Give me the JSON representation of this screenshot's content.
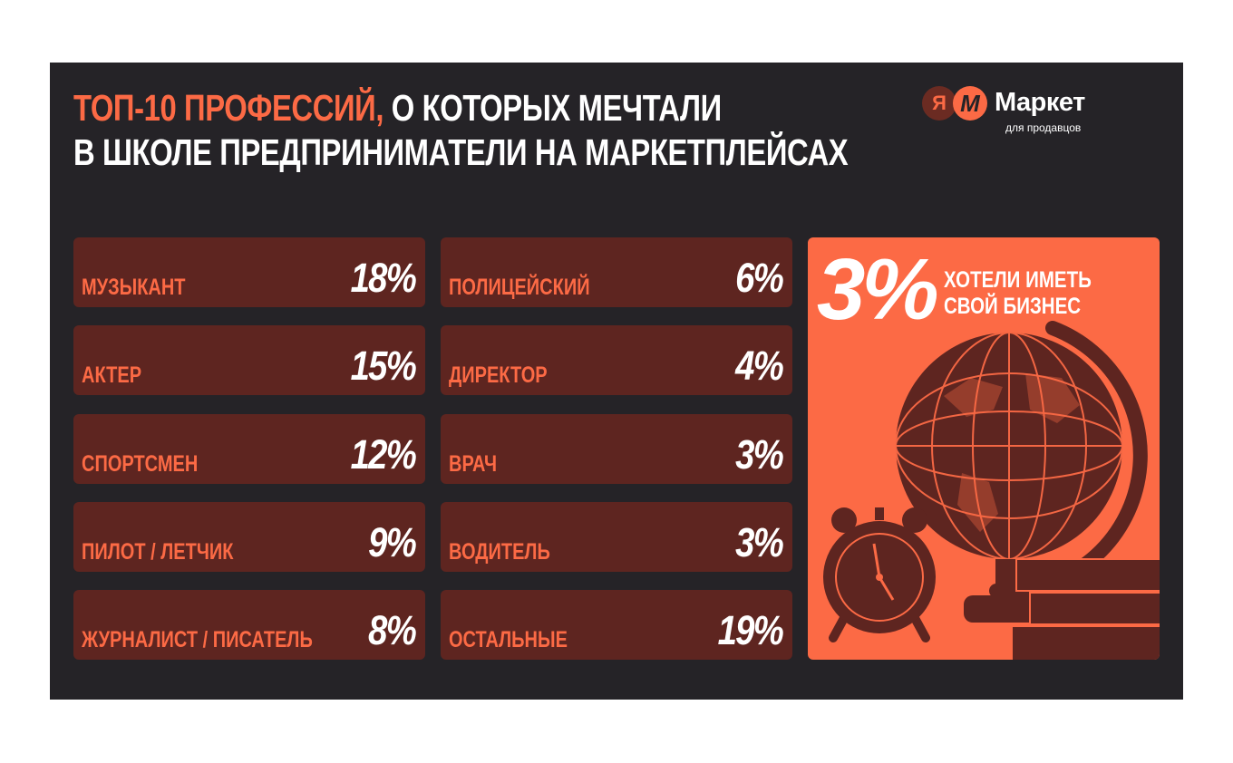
{
  "header": {
    "title_accent": "ТОП-10 ПРОФЕССИЙ,",
    "title_line1_rest": " О КОТОРЫХ МЕЧТАЛИ",
    "title_line2": "В ШКОЛЕ ПРЕДПРИНИМАТЕЛИ НА МАРКЕТПЛЕЙСАХ"
  },
  "logo": {
    "ya_letter": "Я",
    "m_letter": "М",
    "brand": "Маркет",
    "subtitle": "для продавцов"
  },
  "professions": [
    {
      "label": "МУЗЫКАНТ",
      "percent": "18%"
    },
    {
      "label": "АКТЕР",
      "percent": "15%"
    },
    {
      "label": "СПОРТСМЕН",
      "percent": "12%"
    },
    {
      "label": "ПИЛОТ / ЛЕТЧИК",
      "percent": "9%"
    },
    {
      "label": "ЖУРНАЛИСТ / ПИСАТЕЛЬ",
      "percent": "8%"
    },
    {
      "label": "ПОЛИЦЕЙСКИЙ",
      "percent": "6%"
    },
    {
      "label": "ДИРЕКТОР",
      "percent": "4%"
    },
    {
      "label": "ВРАЧ",
      "percent": "3%"
    },
    {
      "label": "ВОДИТЕЛЬ",
      "percent": "3%"
    },
    {
      "label": "ОСТАЛЬНЫЕ",
      "percent": "19%"
    }
  ],
  "promo": {
    "percent": "3%",
    "line1": "ХОТЕЛИ ИМЕТЬ",
    "line2": "СВОЙ БИЗНЕС",
    "illustration": [
      "globe-icon",
      "alarm-clock-icon",
      "books-icon"
    ]
  },
  "colors": {
    "background": "#252327",
    "accent": "#fc6a45",
    "card": "#5e2520",
    "text": "#ffffff"
  }
}
